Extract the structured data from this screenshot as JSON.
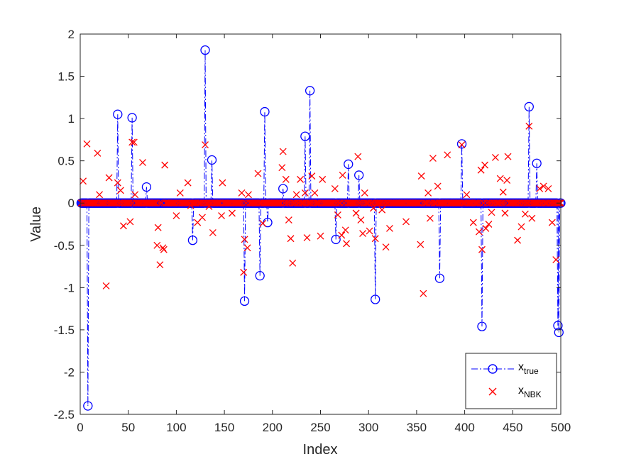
{
  "chart_data": {
    "type": "scatter",
    "title": "",
    "xlabel": "Index",
    "ylabel": "Value",
    "xlim": [
      0,
      500
    ],
    "ylim": [
      -2.5,
      2
    ],
    "xticks": [
      0,
      50,
      100,
      150,
      200,
      250,
      300,
      350,
      400,
      450,
      500
    ],
    "yticks": [
      -2.5,
      -2,
      -1.5,
      -1,
      -0.5,
      0,
      0.5,
      1,
      1.5,
      2
    ],
    "ytick_labels": [
      "-2.5",
      "-2",
      "-1.5",
      "-1",
      "-0.5",
      "0",
      "0.5",
      "1",
      "1.5",
      "2"
    ],
    "grid": false,
    "legend_position": "bottom-right",
    "n": 500,
    "series": [
      {
        "name_main": "x",
        "name_sub": "true",
        "color": "#0000ff",
        "marker": "circle",
        "line": "dash-dot",
        "nonzero": [
          [
            8,
            -2.4
          ],
          [
            39,
            1.05
          ],
          [
            54,
            1.01
          ],
          [
            69,
            0.19
          ],
          [
            117,
            -0.44
          ],
          [
            130,
            1.81
          ],
          [
            137,
            0.51
          ],
          [
            171,
            -1.16
          ],
          [
            187,
            -0.86
          ],
          [
            192,
            1.08
          ],
          [
            195,
            -0.23
          ],
          [
            211,
            0.17
          ],
          [
            234,
            0.79
          ],
          [
            239,
            1.33
          ],
          [
            266,
            -0.43
          ],
          [
            279,
            0.46
          ],
          [
            290,
            0.33
          ],
          [
            307,
            -1.14
          ],
          [
            374,
            -0.89
          ],
          [
            397,
            0.7
          ],
          [
            418,
            -1.46
          ],
          [
            467,
            1.14
          ],
          [
            475,
            0.47
          ],
          [
            497,
            -1.45
          ],
          [
            498,
            -1.53
          ]
        ]
      },
      {
        "name_main": "x",
        "name_sub": "NBK",
        "color": "#ff0000",
        "marker": "x",
        "offzero": [
          [
            3,
            0.26
          ],
          [
            7,
            0.7
          ],
          [
            18,
            0.59
          ],
          [
            20,
            0.1
          ],
          [
            27,
            -0.98
          ],
          [
            30,
            0.3
          ],
          [
            39,
            0.24
          ],
          [
            42,
            0.15
          ],
          [
            45,
            -0.27
          ],
          [
            52,
            -0.22
          ],
          [
            54,
            0.72
          ],
          [
            56,
            0.72
          ],
          [
            57,
            0.1
          ],
          [
            65,
            0.48
          ],
          [
            80,
            -0.5
          ],
          [
            81,
            -0.29
          ],
          [
            83,
            -0.73
          ],
          [
            86,
            -0.53
          ],
          [
            87,
            -0.55
          ],
          [
            88,
            0.45
          ],
          [
            100,
            -0.15
          ],
          [
            104,
            0.12
          ],
          [
            112,
            0.24
          ],
          [
            115,
            -0.03
          ],
          [
            122,
            -0.23
          ],
          [
            127,
            -0.17
          ],
          [
            130,
            0.69
          ],
          [
            134,
            -0.04
          ],
          [
            138,
            -0.35
          ],
          [
            147,
            -0.15
          ],
          [
            148,
            0.24
          ],
          [
            158,
            -0.12
          ],
          [
            168,
            0.12
          ],
          [
            170,
            -0.82
          ],
          [
            171,
            -0.43
          ],
          [
            174,
            -0.53
          ],
          [
            175,
            0.1
          ],
          [
            185,
            0.35
          ],
          [
            190,
            -0.24
          ],
          [
            210,
            0.42
          ],
          [
            211,
            0.61
          ],
          [
            214,
            0.28
          ],
          [
            217,
            -0.2
          ],
          [
            219,
            -0.42
          ],
          [
            221,
            -0.71
          ],
          [
            225,
            0.1
          ],
          [
            229,
            0.28
          ],
          [
            234,
            0.12
          ],
          [
            236,
            -0.41
          ],
          [
            241,
            0.32
          ],
          [
            244,
            0.12
          ],
          [
            250,
            -0.39
          ],
          [
            252,
            0.28
          ],
          [
            265,
            0.17
          ],
          [
            268,
            -0.14
          ],
          [
            272,
            -0.38
          ],
          [
            273,
            0.33
          ],
          [
            276,
            -0.32
          ],
          [
            277,
            -0.48
          ],
          [
            287,
            -0.12
          ],
          [
            289,
            0.55
          ],
          [
            292,
            -0.2
          ],
          [
            294,
            -0.36
          ],
          [
            296,
            0.12
          ],
          [
            301,
            -0.33
          ],
          [
            305,
            -0.06
          ],
          [
            307,
            -0.42
          ],
          [
            314,
            -0.08
          ],
          [
            318,
            -0.52
          ],
          [
            322,
            -0.3
          ],
          [
            339,
            -0.22
          ],
          [
            354,
            -0.49
          ],
          [
            355,
            0.32
          ],
          [
            357,
            -1.07
          ],
          [
            362,
            0.12
          ],
          [
            364,
            -0.18
          ],
          [
            367,
            0.53
          ],
          [
            372,
            0.2
          ],
          [
            382,
            0.57
          ],
          [
            397,
            0.69
          ],
          [
            402,
            0.1
          ],
          [
            409,
            -0.23
          ],
          [
            415,
            -0.34
          ],
          [
            417,
            0.39
          ],
          [
            418,
            -0.55
          ],
          [
            421,
            0.45
          ],
          [
            422,
            -0.3
          ],
          [
            425,
            -0.25
          ],
          [
            428,
            -0.11
          ],
          [
            432,
            0.54
          ],
          [
            437,
            0.29
          ],
          [
            440,
            0.13
          ],
          [
            442,
            -0.12
          ],
          [
            444,
            0.27
          ],
          [
            445,
            0.55
          ],
          [
            455,
            -0.44
          ],
          [
            459,
            -0.28
          ],
          [
            463,
            -0.13
          ],
          [
            467,
            0.91
          ],
          [
            470,
            -0.18
          ],
          [
            478,
            0.17
          ],
          [
            482,
            0.2
          ],
          [
            487,
            0.17
          ],
          [
            491,
            -0.23
          ],
          [
            495,
            -0.67
          ]
        ]
      }
    ]
  }
}
